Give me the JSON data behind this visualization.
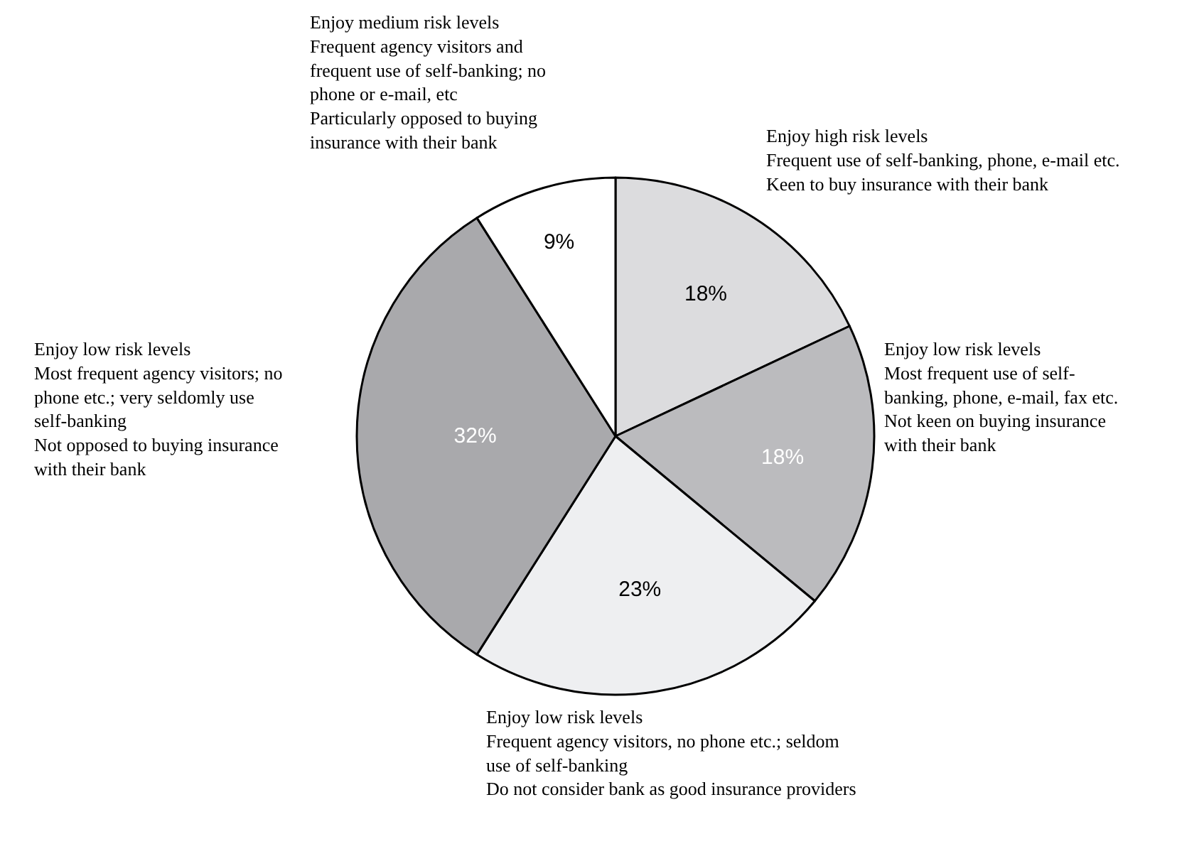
{
  "chart_data": {
    "type": "pie",
    "categories": [
      "Enjoy high risk levels\nFrequent use of self-banking, phone, e-mail etc.\nKeen to buy insurance with their bank",
      "Enjoy low risk levels\nMost frequent use of self-\nbanking, phone, e-mail, fax etc.\nNot keen on buying insurance\nwith their bank",
      "Enjoy low risk levels\nFrequent agency visitors, no phone etc.; seldom\nuse of self-banking\nDo not consider bank as good insurance providers",
      "Enjoy low risk levels\nMost frequent agency visitors; no\nphone etc.; very seldomly use\nself-banking\nNot opposed to buying insurance\nwith their bank",
      "Enjoy medium risk levels\nFrequent agency visitors and\nfrequent use of self-banking; no\nphone or e-mail, etc\nParticularly opposed to buying\ninsurance with their bank"
    ],
    "values": [
      18,
      18,
      23,
      32,
      9
    ],
    "value_labels": [
      "18%",
      "18%",
      "23%",
      "32%",
      "9%"
    ],
    "colors": [
      "#dcdcde",
      "#bbbbbe",
      "#eeeff1",
      "#a9a9ac",
      "#ffffff"
    ]
  }
}
